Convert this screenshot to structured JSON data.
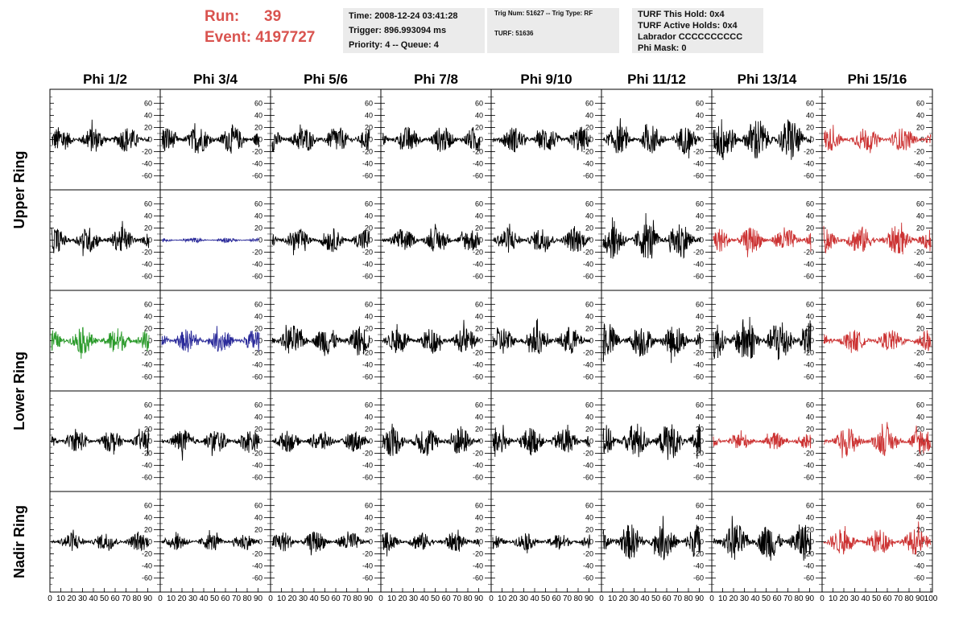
{
  "header": {
    "run_label": "Run:",
    "run_value": "39",
    "event_label": "Event:",
    "event_value": "4197727"
  },
  "info_time": {
    "time": "Time: 2008-12-24 03:41:28",
    "trigger": "Trigger: 896.993094 ms",
    "priority": "Priority: 4 -- Queue: 4"
  },
  "info_trig": {
    "trig": "Trig Num: 51627 -- Trig Type: RF",
    "turf": "TURF: 51636"
  },
  "info_turf": {
    "this_hold": "TURF This Hold: 0x4",
    "active_holds": "TURF Active Holds: 0x4",
    "labrador": "Labrador CCCCCCCCCC",
    "phi_mask": "Phi Mask: 0"
  },
  "columns": [
    "Phi 1/2",
    "Phi 3/4",
    "Phi 5/6",
    "Phi 7/8",
    "Phi 9/10",
    "Phi 11/12",
    "Phi 13/14",
    "Phi 15/16"
  ],
  "ring_labels": [
    "Upper Ring",
    "Lower Ring",
    "Nadir Ring"
  ],
  "y_ticks": [
    60,
    40,
    20,
    0,
    -20,
    -40,
    -60
  ],
  "x_ticks": [
    0,
    10,
    20,
    30,
    40,
    50,
    60,
    70,
    80,
    90,
    100
  ],
  "colors": {
    "black": "#000000",
    "blue": "#2b2b9a",
    "green": "#2a9a2a",
    "red": "#cc3333",
    "header_red": "#d9534f"
  },
  "traces": [
    [
      {
        "color": "black",
        "amp": 22
      },
      {
        "color": "black",
        "amp": 24
      },
      {
        "color": "black",
        "amp": 22
      },
      {
        "color": "black",
        "amp": 22
      },
      {
        "color": "black",
        "amp": 22
      },
      {
        "color": "black",
        "amp": 24
      },
      {
        "color": "black",
        "amp": 38
      },
      {
        "color": "red",
        "amp": 20
      }
    ],
    [
      {
        "color": "black",
        "amp": 22
      },
      {
        "color": "blue",
        "amp": 4
      },
      {
        "color": "black",
        "amp": 20
      },
      {
        "color": "black",
        "amp": 20
      },
      {
        "color": "black",
        "amp": 22
      },
      {
        "color": "black",
        "amp": 32
      },
      {
        "color": "red",
        "amp": 22
      },
      {
        "color": "red",
        "amp": 24
      }
    ],
    [
      {
        "color": "green",
        "amp": 22
      },
      {
        "color": "blue",
        "amp": 20
      },
      {
        "color": "black",
        "amp": 26
      },
      {
        "color": "black",
        "amp": 22
      },
      {
        "color": "black",
        "amp": 24
      },
      {
        "color": "black",
        "amp": 28
      },
      {
        "color": "black",
        "amp": 40
      },
      {
        "color": "red",
        "amp": 18
      }
    ],
    [
      {
        "color": "black",
        "amp": 18
      },
      {
        "color": "black",
        "amp": 20
      },
      {
        "color": "black",
        "amp": 18
      },
      {
        "color": "black",
        "amp": 26
      },
      {
        "color": "black",
        "amp": 24
      },
      {
        "color": "black",
        "amp": 32
      },
      {
        "color": "red",
        "amp": 14
      },
      {
        "color": "red",
        "amp": 24
      }
    ],
    [
      {
        "color": "black",
        "amp": 16
      },
      {
        "color": "black",
        "amp": 14
      },
      {
        "color": "black",
        "amp": 18
      },
      {
        "color": "black",
        "amp": 16
      },
      {
        "color": "black",
        "amp": 14
      },
      {
        "color": "black",
        "amp": 30
      },
      {
        "color": "black",
        "amp": 32
      },
      {
        "color": "red",
        "amp": 22
      }
    ]
  ]
}
